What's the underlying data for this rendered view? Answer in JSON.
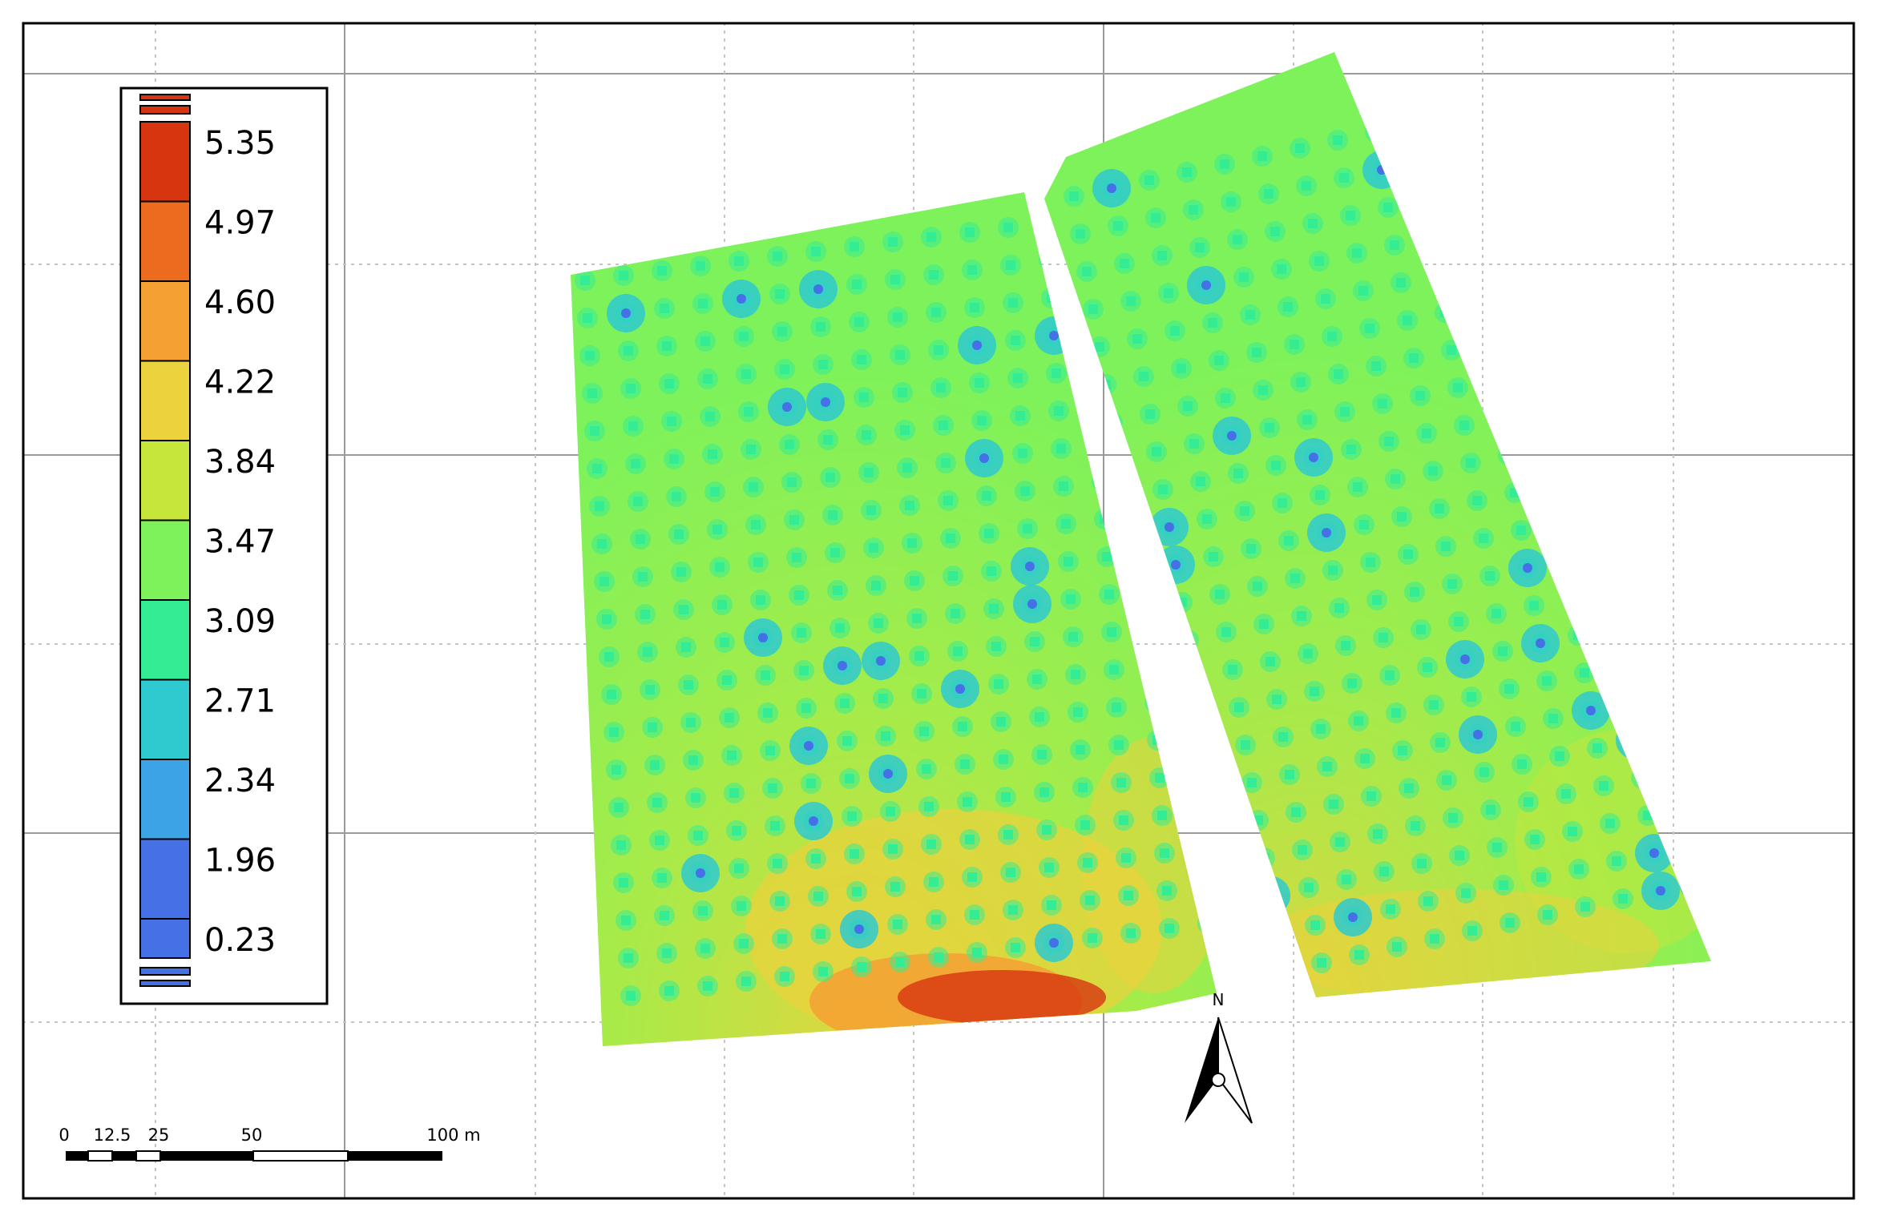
{
  "legend": {
    "title": "",
    "classes": [
      {
        "label": "5.35",
        "color": "#d73510"
      },
      {
        "label": "4.97",
        "color": "#ec6b1e"
      },
      {
        "label": "4.60",
        "color": "#f4a032"
      },
      {
        "label": "4.22",
        "color": "#ecd23c"
      },
      {
        "label": "3.84",
        "color": "#c6e63c"
      },
      {
        "label": "3.47",
        "color": "#7ef25a"
      },
      {
        "label": "3.09",
        "color": "#34ec94"
      },
      {
        "label": "2.71",
        "color": "#2ecad0"
      },
      {
        "label": "2.34",
        "color": "#3ca4e6"
      },
      {
        "label": "1.96",
        "color": "#4670e6"
      },
      {
        "label": "0.23",
        "color": "#4670e6"
      }
    ]
  },
  "scale_bar": {
    "ticks": [
      "0",
      "12.5",
      "25",
      "50",
      "100 m"
    ]
  },
  "north_arrow": {
    "label": "N"
  },
  "colors": {
    "field_base": "#7ef25a",
    "field_dot": "#34ec94",
    "field_low": "#4670e6",
    "field_warm": "#c6e63c",
    "field_yellow": "#ecd23c",
    "field_orange": "#f4a032",
    "field_red": "#d73510",
    "grid_solid": "#9a9a9a",
    "grid_dotted": "#c4c4c4",
    "frame": "#000000"
  }
}
